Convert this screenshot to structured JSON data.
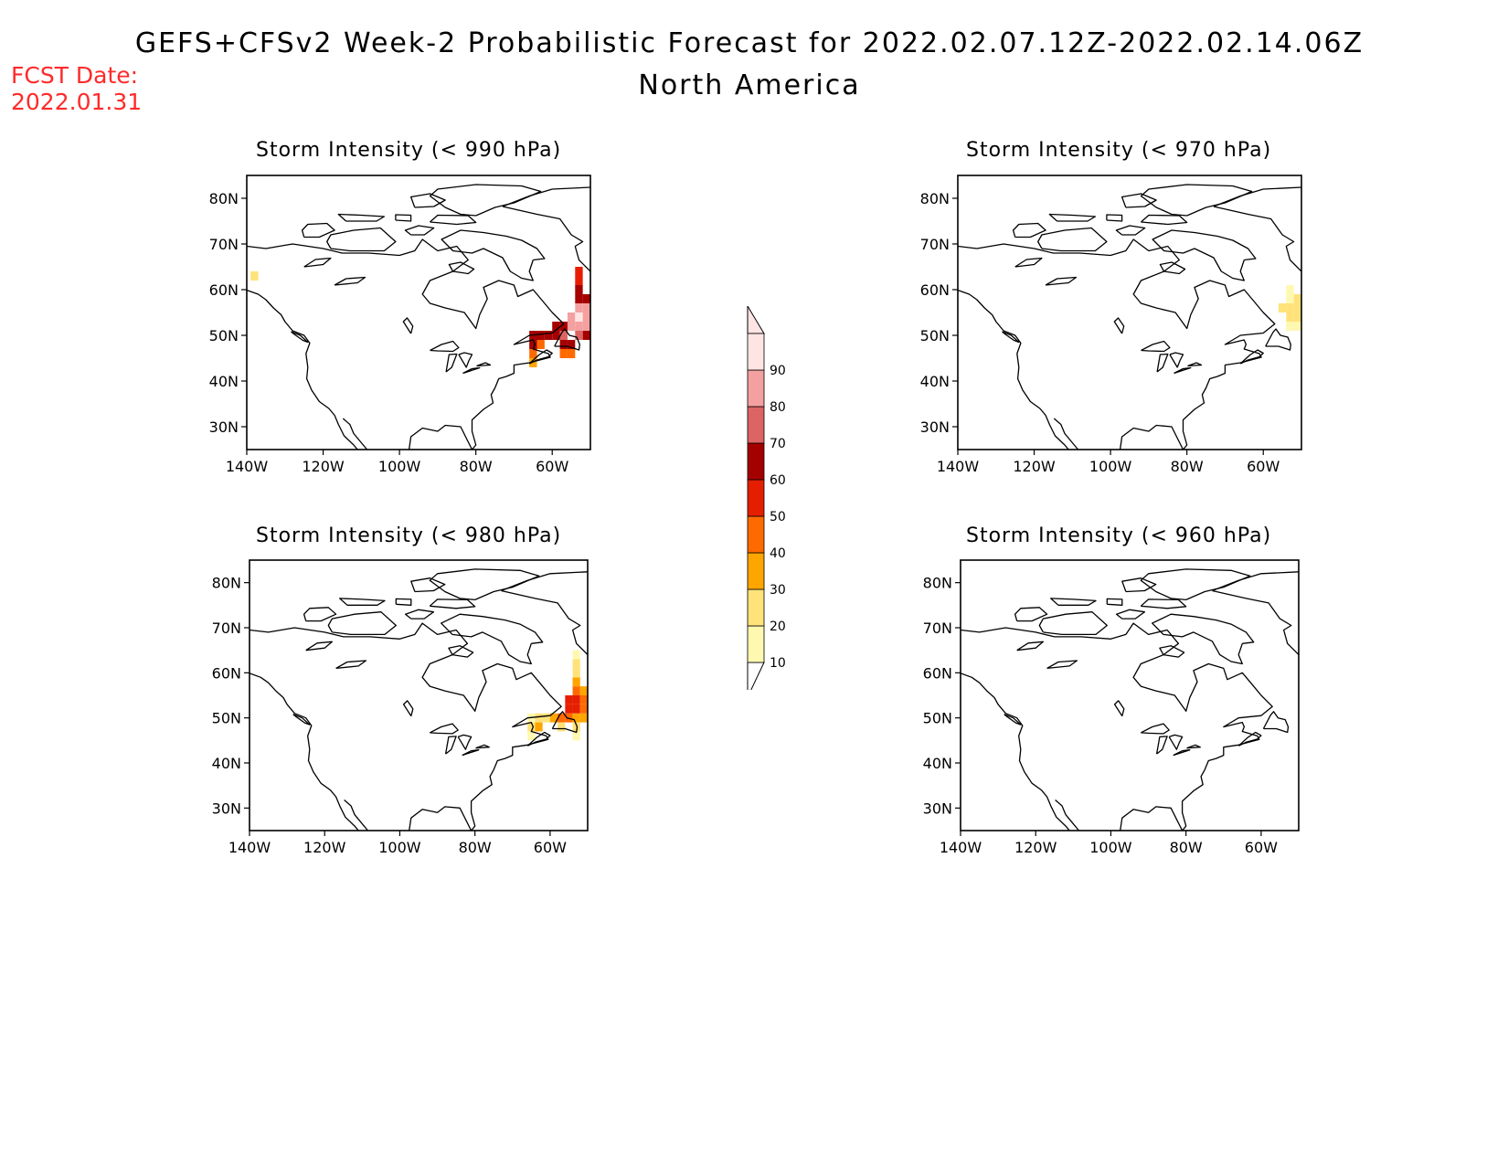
{
  "header": {
    "title": "GEFS+CFSv2 Week-2 Probabilistic Forecast for 2022.02.07.12Z-2022.02.14.06Z",
    "subtitle": "North America",
    "fcst_label": "FCST Date:",
    "fcst_date": "2022.01.31"
  },
  "axes": {
    "lat_ticks": [
      "80N",
      "70N",
      "60N",
      "50N",
      "40N",
      "30N"
    ],
    "lat_values": [
      80,
      70,
      60,
      50,
      40,
      30
    ],
    "lon_ticks": [
      "140W",
      "120W",
      "100W",
      "80W",
      "60W"
    ],
    "lon_values": [
      -140,
      -120,
      -100,
      -80,
      -60
    ],
    "lon_range": [
      -140,
      -50
    ],
    "lat_range": [
      25,
      85
    ]
  },
  "colorbar": {
    "levels": [
      "10",
      "20",
      "30",
      "40",
      "50",
      "60",
      "70",
      "80",
      "90"
    ],
    "colors": [
      "#fff8b0",
      "#ffe27a",
      "#ffa500",
      "#ff6a00",
      "#e61e00",
      "#a50000",
      "#dc6464",
      "#f4a0a0",
      "#ffe4e4"
    ]
  },
  "panels": [
    {
      "title": "Storm Intensity (< 990 hPa)",
      "threshold_hpa": 990,
      "cells": [
        {
          "lon": -138,
          "lat": 63,
          "p": 20
        },
        {
          "lon": -65,
          "lat": 50,
          "p": 60
        },
        {
          "lon": -63,
          "lat": 50,
          "p": 60
        },
        {
          "lon": -61,
          "lat": 50,
          "p": 60
        },
        {
          "lon": -65,
          "lat": 48,
          "p": 60
        },
        {
          "lon": -65,
          "lat": 46,
          "p": 40
        },
        {
          "lon": -65,
          "lat": 44,
          "p": 30
        },
        {
          "lon": -63,
          "lat": 48,
          "p": 40
        },
        {
          "lon": -59,
          "lat": 50,
          "p": 60
        },
        {
          "lon": -57,
          "lat": 50,
          "p": 70
        },
        {
          "lon": -57,
          "lat": 48,
          "p": 60
        },
        {
          "lon": -55,
          "lat": 48,
          "p": 60
        },
        {
          "lon": -55,
          "lat": 46,
          "p": 40
        },
        {
          "lon": -57,
          "lat": 46,
          "p": 40
        },
        {
          "lon": -55,
          "lat": 52,
          "p": 80
        },
        {
          "lon": -53,
          "lat": 52,
          "p": 80
        },
        {
          "lon": -55,
          "lat": 54,
          "p": 80
        },
        {
          "lon": -53,
          "lat": 54,
          "p": 90
        },
        {
          "lon": -51,
          "lat": 54,
          "p": 80
        },
        {
          "lon": -51,
          "lat": 52,
          "p": 80
        },
        {
          "lon": -51,
          "lat": 50,
          "p": 60
        },
        {
          "lon": -53,
          "lat": 50,
          "p": 70
        },
        {
          "lon": -53,
          "lat": 56,
          "p": 80
        },
        {
          "lon": -51,
          "lat": 56,
          "p": 80
        },
        {
          "lon": -53,
          "lat": 58,
          "p": 60
        },
        {
          "lon": -51,
          "lat": 58,
          "p": 60
        },
        {
          "lon": -53,
          "lat": 60,
          "p": 60
        },
        {
          "lon": -53,
          "lat": 62,
          "p": 50
        },
        {
          "lon": -53,
          "lat": 64,
          "p": 50
        },
        {
          "lon": -57,
          "lat": 52,
          "p": 60
        },
        {
          "lon": -59,
          "lat": 52,
          "p": 60
        }
      ]
    },
    {
      "title": "Storm Intensity (< 970 hPa)",
      "threshold_hpa": 970,
      "cells": [
        {
          "lon": -55,
          "lat": 56,
          "p": 20
        },
        {
          "lon": -53,
          "lat": 56,
          "p": 20
        },
        {
          "lon": -53,
          "lat": 54,
          "p": 20
        },
        {
          "lon": -51,
          "lat": 54,
          "p": 20
        },
        {
          "lon": -51,
          "lat": 56,
          "p": 20
        },
        {
          "lon": -51,
          "lat": 58,
          "p": 20
        },
        {
          "lon": -53,
          "lat": 58,
          "p": 10
        },
        {
          "lon": -53,
          "lat": 60,
          "p": 10
        },
        {
          "lon": -53,
          "lat": 52,
          "p": 10
        },
        {
          "lon": -51,
          "lat": 52,
          "p": 10
        }
      ]
    },
    {
      "title": "Storm Intensity (< 980 hPa)",
      "threshold_hpa": 980,
      "cells": [
        {
          "lon": -65,
          "lat": 50,
          "p": 10
        },
        {
          "lon": -63,
          "lat": 50,
          "p": 20
        },
        {
          "lon": -61,
          "lat": 50,
          "p": 20
        },
        {
          "lon": -65,
          "lat": 48,
          "p": 20
        },
        {
          "lon": -63,
          "lat": 48,
          "p": 30
        },
        {
          "lon": -65,
          "lat": 46,
          "p": 10
        },
        {
          "lon": -59,
          "lat": 50,
          "p": 30
        },
        {
          "lon": -57,
          "lat": 50,
          "p": 40
        },
        {
          "lon": -55,
          "lat": 50,
          "p": 40
        },
        {
          "lon": -53,
          "lat": 50,
          "p": 30
        },
        {
          "lon": -51,
          "lat": 50,
          "p": 30
        },
        {
          "lon": -53,
          "lat": 48,
          "p": 20
        },
        {
          "lon": -53,
          "lat": 46,
          "p": 10
        },
        {
          "lon": -57,
          "lat": 48,
          "p": 20
        },
        {
          "lon": -55,
          "lat": 52,
          "p": 50
        },
        {
          "lon": -53,
          "lat": 52,
          "p": 50
        },
        {
          "lon": -51,
          "lat": 52,
          "p": 40
        },
        {
          "lon": -55,
          "lat": 54,
          "p": 50
        },
        {
          "lon": -53,
          "lat": 54,
          "p": 50
        },
        {
          "lon": -51,
          "lat": 54,
          "p": 40
        },
        {
          "lon": -53,
          "lat": 56,
          "p": 40
        },
        {
          "lon": -51,
          "lat": 56,
          "p": 30
        },
        {
          "lon": -53,
          "lat": 58,
          "p": 30
        },
        {
          "lon": -53,
          "lat": 60,
          "p": 20
        },
        {
          "lon": -53,
          "lat": 62,
          "p": 20
        },
        {
          "lon": -53,
          "lat": 64,
          "p": 10
        }
      ]
    },
    {
      "title": "Storm Intensity (< 960 hPa)",
      "threshold_hpa": 960,
      "cells": []
    }
  ]
}
